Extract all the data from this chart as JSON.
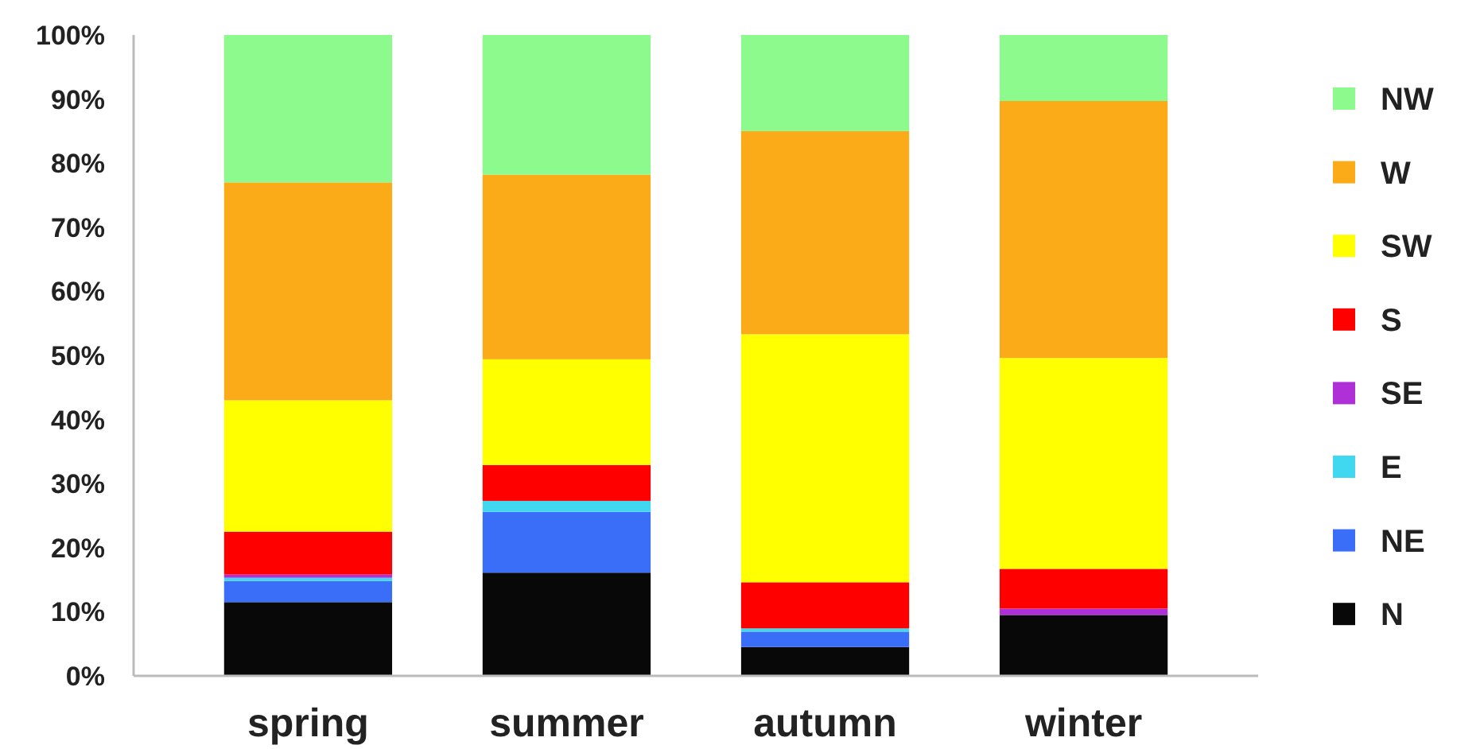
{
  "chart_data": {
    "type": "bar",
    "stacked": true,
    "categories": [
      "spring",
      "summer",
      "autumn",
      "winter"
    ],
    "series": [
      {
        "name": "N",
        "color": "#080808",
        "values": [
          11.5,
          16.1,
          4.5,
          9.5
        ]
      },
      {
        "name": "NE",
        "color": "#3a6ef8",
        "values": [
          3.3,
          9.5,
          2.4,
          0
        ]
      },
      {
        "name": "E",
        "color": "#40d8f0",
        "values": [
          0.5,
          1.7,
          0.5,
          0
        ]
      },
      {
        "name": "SE",
        "color": "#b030d8",
        "values": [
          0.5,
          0,
          0,
          1
        ]
      },
      {
        "name": "S",
        "color": "#ff0000",
        "values": [
          6.7,
          5.6,
          7.2,
          6.2
        ]
      },
      {
        "name": "SW",
        "color": "#ffff00",
        "values": [
          20.5,
          16.5,
          38.7,
          32.9
        ]
      },
      {
        "name": "W",
        "color": "#fbab18",
        "values": [
          34,
          28.8,
          31.7,
          40.1
        ]
      },
      {
        "name": "NW",
        "color": "#8cfa8c",
        "values": [
          23,
          21.8,
          15,
          10.3
        ]
      }
    ],
    "ylim": [
      0,
      100
    ],
    "yticks": [
      {
        "value": 0,
        "label": "0%"
      },
      {
        "value": 10,
        "label": "10%"
      },
      {
        "value": 20,
        "label": "20%"
      },
      {
        "value": 30,
        "label": "30%"
      },
      {
        "value": 40,
        "label": "40%"
      },
      {
        "value": 50,
        "label": "50%"
      },
      {
        "value": 60,
        "label": "60%"
      },
      {
        "value": 70,
        "label": "70%"
      },
      {
        "value": 80,
        "label": "80%"
      },
      {
        "value": 90,
        "label": "90%"
      },
      {
        "value": 100,
        "label": "100%"
      }
    ],
    "grid": false,
    "legend": "right"
  }
}
